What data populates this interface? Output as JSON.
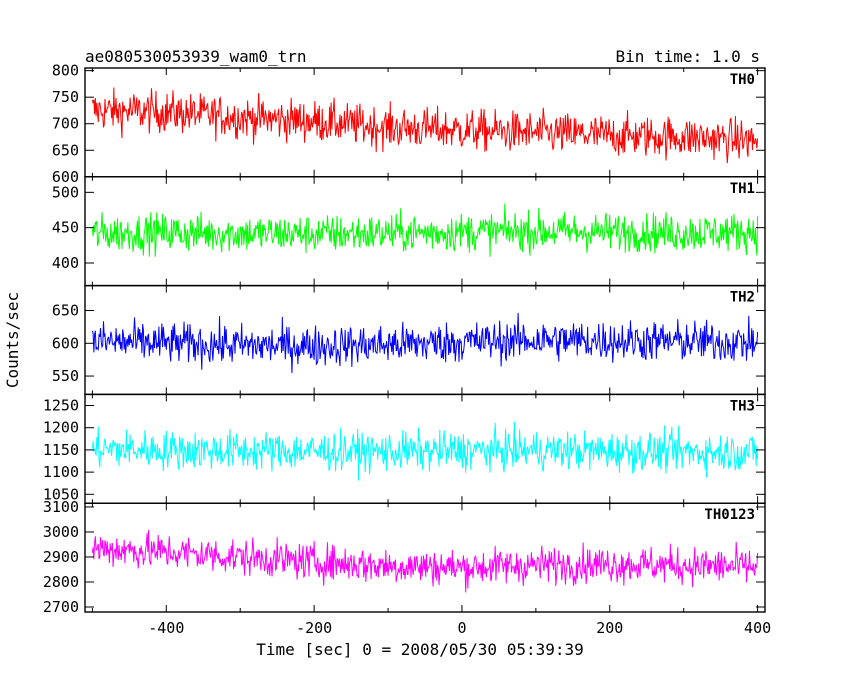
{
  "header": {
    "title": "ae080530053939_wam0_trn",
    "bin_time": "Bin time: 1.0 s"
  },
  "axes": {
    "xlabel": "Time [sec] 0 = 2008/05/30 05:39:39",
    "ylabel": "Counts/sec"
  },
  "chart_data": {
    "type": "line",
    "title": "ae080530053939_wam0_trn",
    "xlabel": "Time [sec] 0 = 2008/05/30 05:39:39",
    "ylabel": "Counts/sec",
    "xlim": [
      -510,
      410
    ],
    "xticks": [
      -400,
      -200,
      0,
      200,
      400
    ],
    "grid": false,
    "panels": [
      {
        "name": "TH0",
        "color": "#ff0000",
        "ylim": [
          600,
          805
        ],
        "yticks": [
          600,
          650,
          700,
          750,
          800
        ],
        "x": [
          -500,
          -400,
          -300,
          -200,
          -100,
          0,
          100,
          200,
          300,
          400
        ],
        "y": [
          725,
          722,
          712,
          705,
          693,
          688,
          683,
          678,
          675,
          668
        ],
        "noise_amplitude": 40
      },
      {
        "name": "TH1",
        "color": "#00ff00",
        "ylim": [
          368,
          522
        ],
        "yticks": [
          400,
          450,
          500
        ],
        "x": [
          -500,
          -400,
          -300,
          -200,
          -100,
          0,
          100,
          200,
          300,
          400
        ],
        "y": [
          442,
          443,
          442,
          441,
          442,
          444,
          445,
          444,
          443,
          444
        ],
        "noise_amplitude": 28
      },
      {
        "name": "TH2",
        "color": "#0000ff",
        "ylim": [
          522,
          688
        ],
        "yticks": [
          550,
          600,
          650
        ],
        "x": [
          -500,
          -400,
          -300,
          -200,
          -100,
          0,
          100,
          200,
          300,
          400
        ],
        "y": [
          603,
          600,
          597,
          596,
          598,
          602,
          605,
          604,
          603,
          601
        ],
        "noise_amplitude": 32
      },
      {
        "name": "TH3",
        "color": "#00ffff",
        "ylim": [
          1030,
          1275
        ],
        "yticks": [
          1050,
          1100,
          1150,
          1200,
          1250
        ],
        "x": [
          -500,
          -400,
          -300,
          -200,
          -100,
          0,
          100,
          200,
          300,
          400
        ],
        "y": [
          1152,
          1150,
          1148,
          1147,
          1146,
          1148,
          1149,
          1147,
          1146,
          1145
        ],
        "noise_amplitude": 45
      },
      {
        "name": "TH0123",
        "color": "#ff00ff",
        "ylim": [
          2680,
          3115
        ],
        "yticks": [
          2700,
          2800,
          2900,
          3000,
          3100
        ],
        "x": [
          -500,
          -400,
          -300,
          -200,
          -100,
          0,
          100,
          200,
          300,
          400
        ],
        "y": [
          2935,
          2920,
          2900,
          2880,
          2865,
          2858,
          2868,
          2872,
          2866,
          2860
        ],
        "noise_amplitude": 75
      }
    ]
  }
}
